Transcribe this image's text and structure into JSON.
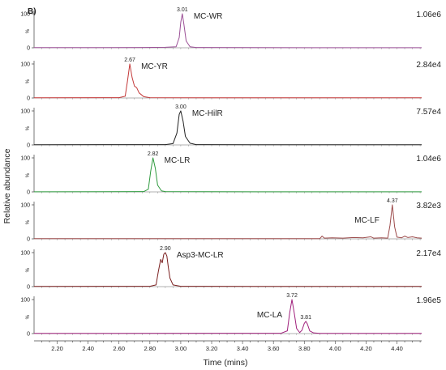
{
  "chart_data": {
    "type": "line",
    "panel_label": "B)",
    "xlabel": "Time (mins)",
    "ylabel": "Relative abundance",
    "xlim": [
      2.05,
      4.56
    ],
    "xticks": [
      "2.20",
      "2.40",
      "2.60",
      "2.80",
      "3.00",
      "3.20",
      "3.40",
      "3.60",
      "3.80",
      "4.00",
      "4.20",
      "4.40"
    ],
    "yticks": [
      "0",
      "100"
    ],
    "y_unit_label": "%",
    "ylim": [
      0,
      100
    ],
    "panels": [
      {
        "name": "MC-WR",
        "scale": "1.06e6",
        "color": "#9b4f96",
        "peak_labels": [
          {
            "x": 3.01,
            "label": "3.01"
          }
        ],
        "series": [
          [
            2.05,
            0.5
          ],
          [
            2.5,
            0.5
          ],
          [
            2.75,
            0.8
          ],
          [
            2.9,
            1.5
          ],
          [
            2.97,
            3
          ],
          [
            2.99,
            30
          ],
          [
            3.0,
            75
          ],
          [
            3.01,
            100
          ],
          [
            3.02,
            70
          ],
          [
            3.035,
            20
          ],
          [
            3.06,
            3
          ],
          [
            3.1,
            1
          ],
          [
            3.5,
            0.5
          ],
          [
            4.56,
            0.3
          ]
        ]
      },
      {
        "name": "MC-YR",
        "scale": "2.84e4",
        "color": "#c43a3a",
        "peak_labels": [
          {
            "x": 2.67,
            "label": "2.67"
          }
        ],
        "series": [
          [
            2.05,
            0.5
          ],
          [
            2.6,
            1
          ],
          [
            2.64,
            5
          ],
          [
            2.655,
            50
          ],
          [
            2.67,
            100
          ],
          [
            2.685,
            60
          ],
          [
            2.7,
            35
          ],
          [
            2.715,
            30
          ],
          [
            2.73,
            15
          ],
          [
            2.76,
            4
          ],
          [
            2.8,
            1
          ],
          [
            3.3,
            0.5
          ],
          [
            4.56,
            0.5
          ]
        ]
      },
      {
        "name": "MC-HilR",
        "scale": "7.57e4",
        "color": "#222222",
        "peak_labels": [
          {
            "x": 3.0,
            "label": "3.00"
          }
        ],
        "series": [
          [
            2.05,
            0.5
          ],
          [
            2.9,
            1
          ],
          [
            2.95,
            4
          ],
          [
            2.975,
            35
          ],
          [
            2.99,
            90
          ],
          [
            3.0,
            100
          ],
          [
            3.015,
            70
          ],
          [
            3.03,
            25
          ],
          [
            3.06,
            5
          ],
          [
            3.1,
            1
          ],
          [
            3.5,
            0.5
          ],
          [
            4.56,
            0.5
          ]
        ]
      },
      {
        "name": "MC-LR",
        "scale": "1.04e6",
        "color": "#2e9a3e",
        "peak_labels": [
          {
            "x": 2.82,
            "label": "2.82"
          }
        ],
        "series": [
          [
            2.05,
            0.3
          ],
          [
            2.76,
            0.8
          ],
          [
            2.79,
            8
          ],
          [
            2.805,
            60
          ],
          [
            2.82,
            100
          ],
          [
            2.835,
            70
          ],
          [
            2.85,
            20
          ],
          [
            2.875,
            3
          ],
          [
            2.9,
            0.8
          ],
          [
            3.5,
            0.3
          ],
          [
            4.56,
            0.3
          ]
        ]
      },
      {
        "name": "MC-LF",
        "scale": "3.82e3",
        "color": "#9b4a4a",
        "peak_labels": [
          {
            "x": 4.37,
            "label": "4.37"
          }
        ],
        "series": [
          [
            2.05,
            0.5
          ],
          [
            3.9,
            0.5
          ],
          [
            3.915,
            8
          ],
          [
            3.93,
            2
          ],
          [
            3.98,
            3
          ],
          [
            4.05,
            2
          ],
          [
            4.12,
            4
          ],
          [
            4.18,
            3
          ],
          [
            4.23,
            6
          ],
          [
            4.25,
            2
          ],
          [
            4.3,
            3
          ],
          [
            4.34,
            2
          ],
          [
            4.355,
            40
          ],
          [
            4.37,
            100
          ],
          [
            4.385,
            35
          ],
          [
            4.4,
            5
          ],
          [
            4.43,
            3
          ],
          [
            4.45,
            8
          ],
          [
            4.47,
            4
          ],
          [
            4.5,
            6
          ],
          [
            4.53,
            3
          ],
          [
            4.56,
            2
          ]
        ]
      },
      {
        "name": "Asp3-MC-LR",
        "scale": "2.17e4",
        "color": "#7a1f1f",
        "peak_labels": [
          {
            "x": 2.9,
            "label": "2.90"
          }
        ],
        "series": [
          [
            2.05,
            0.5
          ],
          [
            2.8,
            1
          ],
          [
            2.84,
            5
          ],
          [
            2.855,
            45
          ],
          [
            2.87,
            80
          ],
          [
            2.88,
            70
          ],
          [
            2.89,
            95
          ],
          [
            2.9,
            100
          ],
          [
            2.91,
            90
          ],
          [
            2.92,
            55
          ],
          [
            2.93,
            25
          ],
          [
            2.95,
            5
          ],
          [
            3.0,
            1
          ],
          [
            3.5,
            0.5
          ],
          [
            4.56,
            0.5
          ]
        ]
      },
      {
        "name": "MC-LA",
        "scale": "1.96e5",
        "color": "#a0207c",
        "peak_labels": [
          {
            "x": 3.72,
            "label": "3.72"
          },
          {
            "x": 3.81,
            "label": "3.81"
          }
        ],
        "series": [
          [
            2.05,
            0.5
          ],
          [
            3.65,
            1
          ],
          [
            3.69,
            8
          ],
          [
            3.705,
            60
          ],
          [
            3.72,
            100
          ],
          [
            3.735,
            60
          ],
          [
            3.75,
            15
          ],
          [
            3.77,
            3
          ],
          [
            3.785,
            10
          ],
          [
            3.8,
            30
          ],
          [
            3.81,
            36
          ],
          [
            3.82,
            28
          ],
          [
            3.835,
            8
          ],
          [
            3.86,
            2
          ],
          [
            3.9,
            0.5
          ],
          [
            4.56,
            0.5
          ]
        ]
      }
    ]
  }
}
